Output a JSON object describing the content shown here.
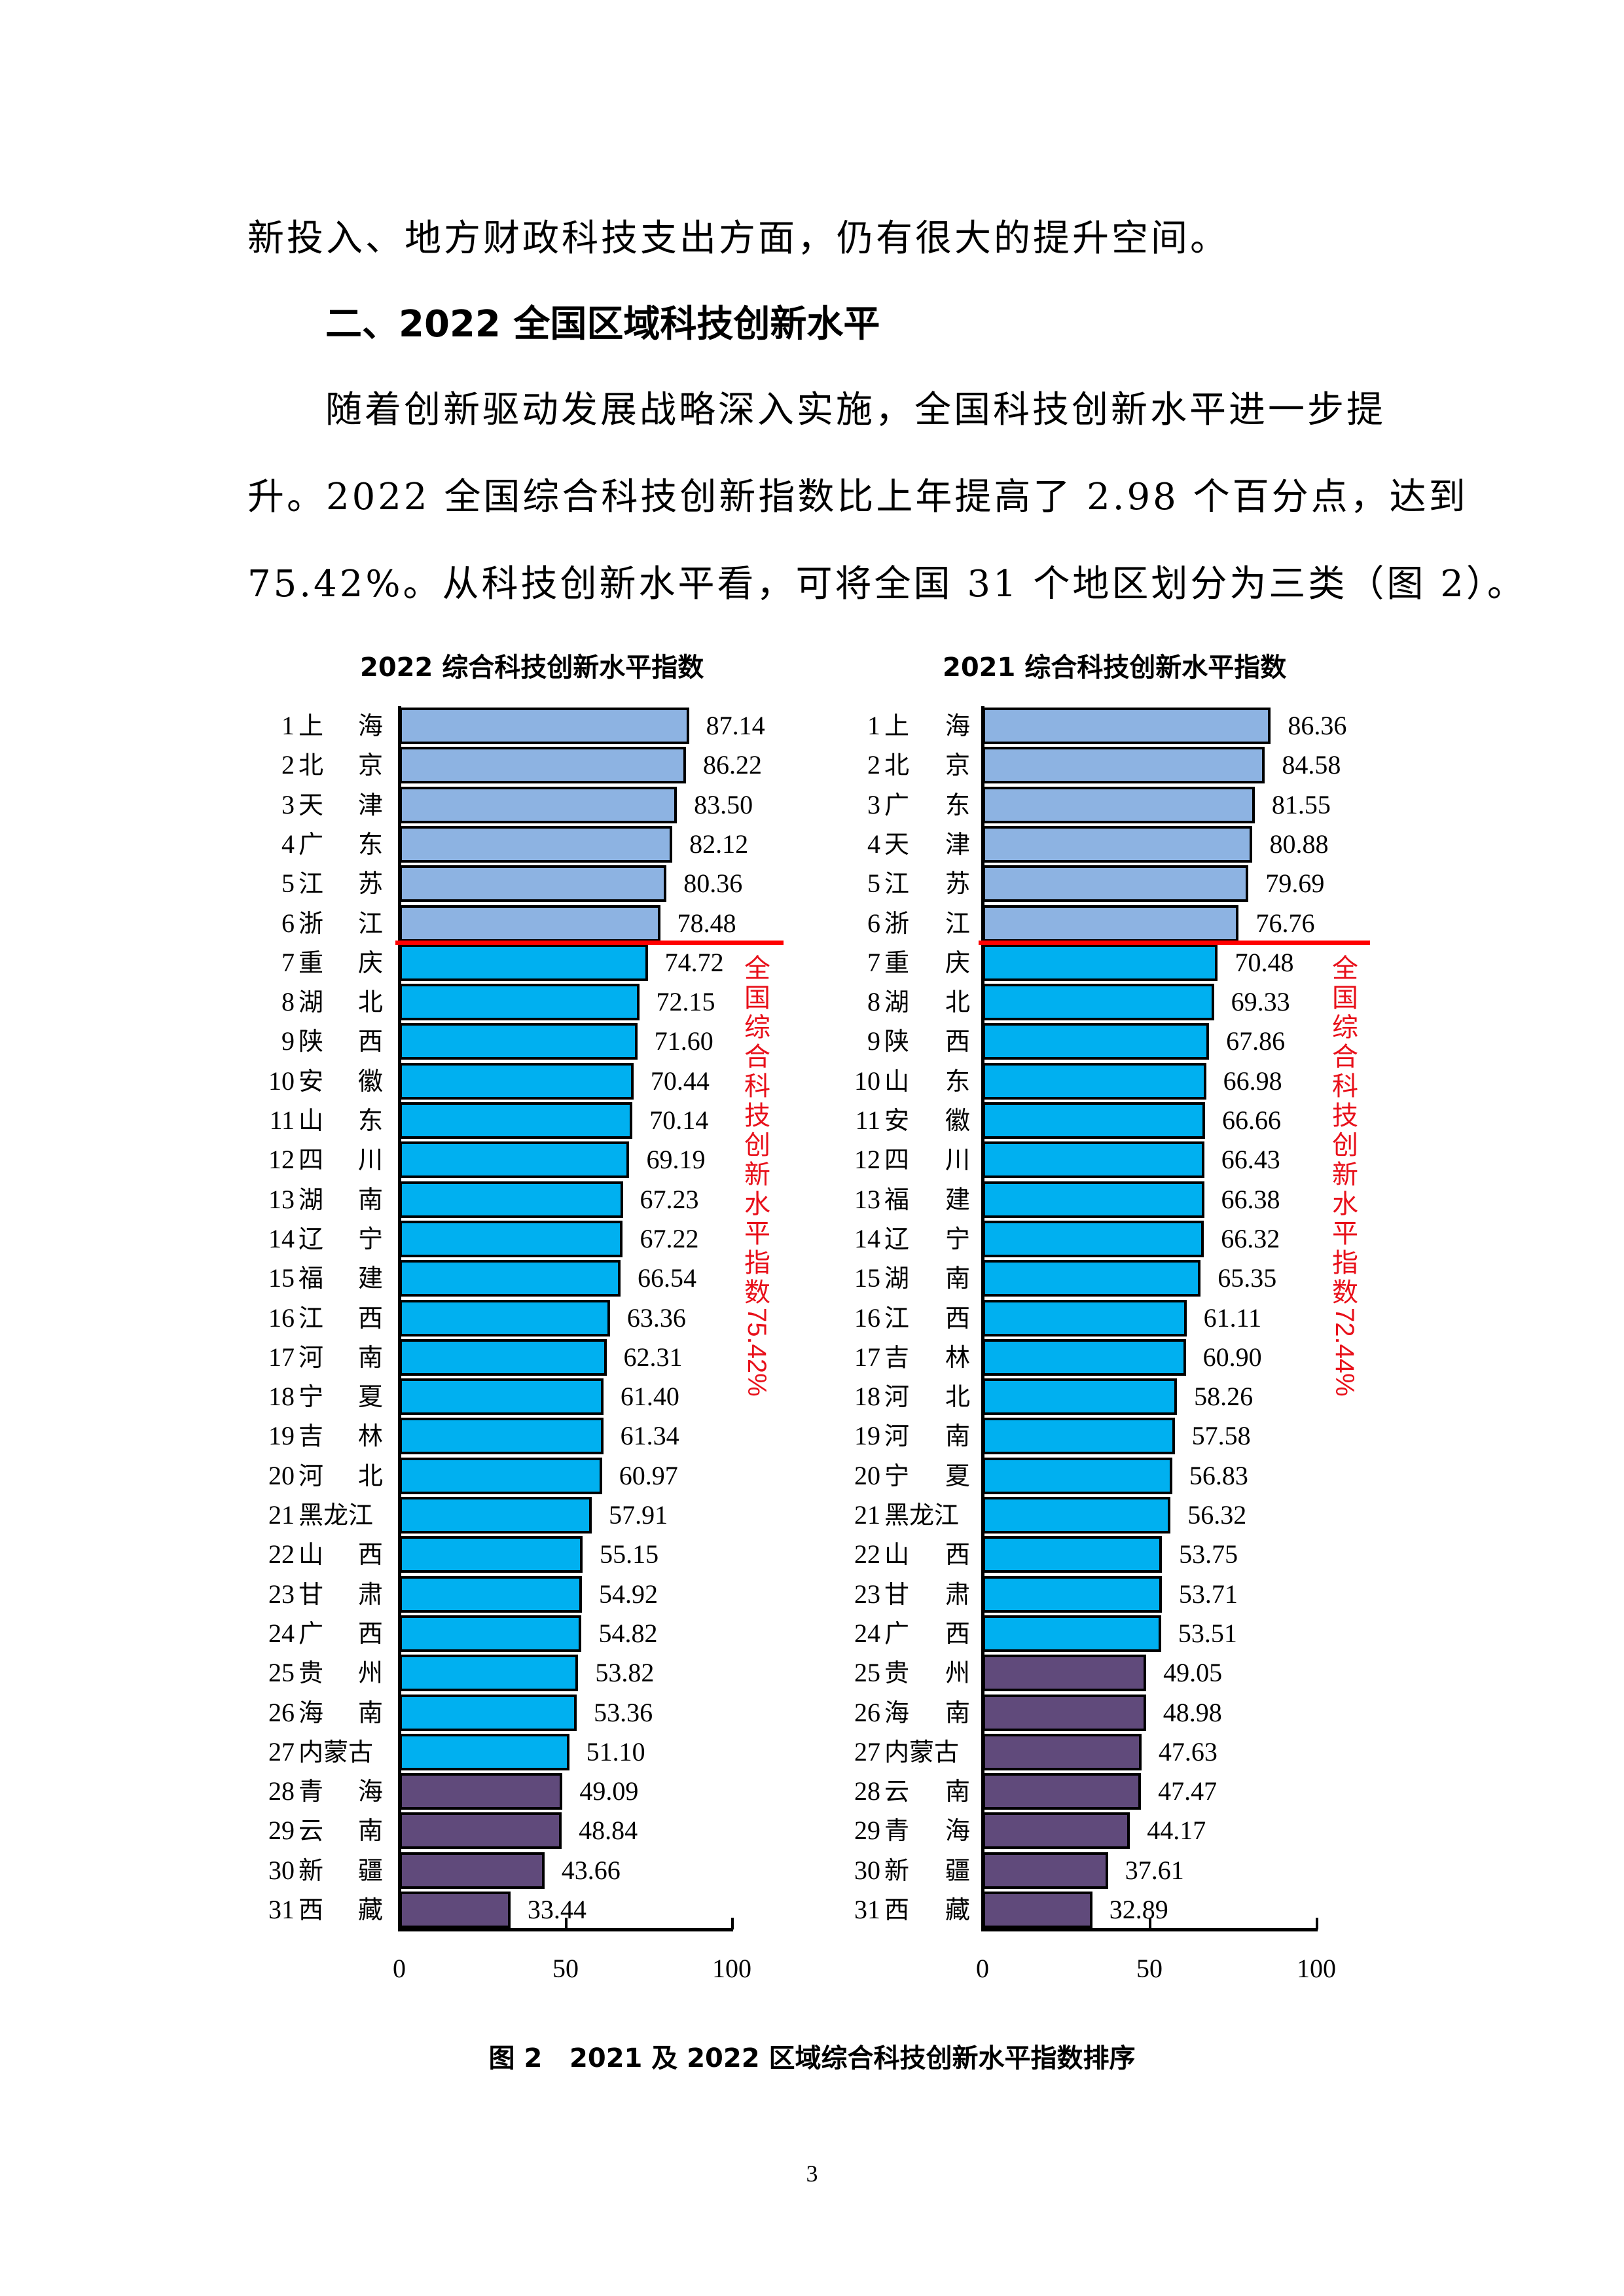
{
  "body": {
    "line1": "新投入、地方财政科技支出方面，仍有很大的提升空间。",
    "heading": "二、2022 全国区域科技创新水平",
    "para_line1": "随着创新驱动发展战略深入实施，全国科技创新水平进一步提",
    "para_line2": "升。2022 全国综合科技创新指数比上年提高了 2.98 个百分点，达到",
    "para_line3": "75.42%。从科技创新水平看，可将全国 31 个地区划分为三类（图 2）。"
  },
  "figure": {
    "caption": "图 2   2021 及 2022 区域综合科技创新水平指数排序",
    "page_number": "3"
  },
  "colors": {
    "tier1": "#8db3e2",
    "tier2": "#00b0f0",
    "tier3": "#604a7b",
    "threshold_line": "#ff0000",
    "annotation": "#e8101a"
  },
  "chart_data": [
    {
      "type": "bar",
      "orientation": "horizontal",
      "title": "2022 综合科技创新水平指数",
      "xlabel": "",
      "ylabel": "",
      "xlim": [
        0,
        100
      ],
      "xticks": [
        "0",
        "50",
        "100"
      ],
      "grid": false,
      "legend": null,
      "annotation": {
        "text": "全国综合科技创新水平指数",
        "value": "75.42%",
        "threshold_after_rank": 6
      },
      "categories": [
        {
          "rank": "1",
          "name": "上海"
        },
        {
          "rank": "2",
          "name": "北京"
        },
        {
          "rank": "3",
          "name": "天津"
        },
        {
          "rank": "4",
          "name": "广东"
        },
        {
          "rank": "5",
          "name": "江苏"
        },
        {
          "rank": "6",
          "name": "浙江"
        },
        {
          "rank": "7",
          "name": "重庆"
        },
        {
          "rank": "8",
          "name": "湖北"
        },
        {
          "rank": "9",
          "name": "陕西"
        },
        {
          "rank": "10",
          "name": "安徽"
        },
        {
          "rank": "11",
          "name": "山东"
        },
        {
          "rank": "12",
          "name": "四川"
        },
        {
          "rank": "13",
          "name": "湖南"
        },
        {
          "rank": "14",
          "name": "辽宁"
        },
        {
          "rank": "15",
          "name": "福建"
        },
        {
          "rank": "16",
          "name": "江西"
        },
        {
          "rank": "17",
          "name": "河南"
        },
        {
          "rank": "18",
          "name": "宁夏"
        },
        {
          "rank": "19",
          "name": "吉林"
        },
        {
          "rank": "20",
          "name": "河北"
        },
        {
          "rank": "21",
          "name": "黑龙江"
        },
        {
          "rank": "22",
          "name": "山西"
        },
        {
          "rank": "23",
          "name": "甘肃"
        },
        {
          "rank": "24",
          "name": "广西"
        },
        {
          "rank": "25",
          "name": "贵州"
        },
        {
          "rank": "26",
          "name": "海南"
        },
        {
          "rank": "27",
          "name": "内蒙古"
        },
        {
          "rank": "28",
          "name": "青海"
        },
        {
          "rank": "29",
          "name": "云南"
        },
        {
          "rank": "30",
          "name": "新疆"
        },
        {
          "rank": "31",
          "name": "西藏"
        }
      ],
      "values": [
        87.14,
        86.22,
        83.5,
        82.12,
        80.36,
        78.48,
        74.72,
        72.15,
        71.6,
        70.44,
        70.14,
        69.19,
        67.23,
        67.22,
        66.54,
        63.36,
        62.31,
        61.4,
        61.34,
        60.97,
        57.91,
        55.15,
        54.92,
        54.82,
        53.82,
        53.36,
        51.1,
        49.09,
        48.84,
        43.66,
        33.44
      ],
      "value_labels": [
        "87.14",
        "86.22",
        "83.50",
        "82.12",
        "80.36",
        "78.48",
        "74.72",
        "72.15",
        "71.60",
        "70.44",
        "70.14",
        "69.19",
        "67.23",
        "67.22",
        "66.54",
        "63.36",
        "62.31",
        "61.40",
        "61.34",
        "60.97",
        "57.91",
        "55.15",
        "54.92",
        "54.82",
        "53.82",
        "53.36",
        "51.10",
        "49.09",
        "48.84",
        "43.66",
        "33.44"
      ],
      "tiers": [
        1,
        1,
        1,
        1,
        1,
        1,
        2,
        2,
        2,
        2,
        2,
        2,
        2,
        2,
        2,
        2,
        2,
        2,
        2,
        2,
        2,
        2,
        2,
        2,
        2,
        2,
        2,
        3,
        3,
        3,
        3
      ]
    },
    {
      "type": "bar",
      "orientation": "horizontal",
      "title": "2021 综合科技创新水平指数",
      "xlabel": "",
      "ylabel": "",
      "xlim": [
        0,
        100
      ],
      "xticks": [
        "0",
        "50",
        "100"
      ],
      "grid": false,
      "legend": null,
      "annotation": {
        "text": "全国综合科技创新水平指数",
        "value": "72.44%",
        "threshold_after_rank": 6
      },
      "categories": [
        {
          "rank": "1",
          "name": "上海"
        },
        {
          "rank": "2",
          "name": "北京"
        },
        {
          "rank": "3",
          "name": "广东"
        },
        {
          "rank": "4",
          "name": "天津"
        },
        {
          "rank": "5",
          "name": "江苏"
        },
        {
          "rank": "6",
          "name": "浙江"
        },
        {
          "rank": "7",
          "name": "重庆"
        },
        {
          "rank": "8",
          "name": "湖北"
        },
        {
          "rank": "9",
          "name": "陕西"
        },
        {
          "rank": "10",
          "name": "山东"
        },
        {
          "rank": "11",
          "name": "安徽"
        },
        {
          "rank": "12",
          "name": "四川"
        },
        {
          "rank": "13",
          "name": "福建"
        },
        {
          "rank": "14",
          "name": "辽宁"
        },
        {
          "rank": "15",
          "name": "湖南"
        },
        {
          "rank": "16",
          "name": "江西"
        },
        {
          "rank": "17",
          "name": "吉林"
        },
        {
          "rank": "18",
          "name": "河北"
        },
        {
          "rank": "19",
          "name": "河南"
        },
        {
          "rank": "20",
          "name": "宁夏"
        },
        {
          "rank": "21",
          "name": "黑龙江"
        },
        {
          "rank": "22",
          "name": "山西"
        },
        {
          "rank": "23",
          "name": "甘肃"
        },
        {
          "rank": "24",
          "name": "广西"
        },
        {
          "rank": "25",
          "name": "贵州"
        },
        {
          "rank": "26",
          "name": "海南"
        },
        {
          "rank": "27",
          "name": "内蒙古"
        },
        {
          "rank": "28",
          "name": "云南"
        },
        {
          "rank": "29",
          "name": "青海"
        },
        {
          "rank": "30",
          "name": "新疆"
        },
        {
          "rank": "31",
          "name": "西藏"
        }
      ],
      "values": [
        86.36,
        84.58,
        81.55,
        80.88,
        79.69,
        76.76,
        70.48,
        69.33,
        67.86,
        66.98,
        66.66,
        66.43,
        66.38,
        66.32,
        65.35,
        61.11,
        60.9,
        58.26,
        57.58,
        56.83,
        56.32,
        53.75,
        53.71,
        53.51,
        49.05,
        48.98,
        47.63,
        47.47,
        44.17,
        37.61,
        32.89
      ],
      "value_labels": [
        "86.36",
        "84.58",
        "81.55",
        "80.88",
        "79.69",
        "76.76",
        "70.48",
        "69.33",
        "67.86",
        "66.98",
        "66.66",
        "66.43",
        "66.38",
        "66.32",
        "65.35",
        "61.11",
        "60.90",
        "58.26",
        "57.58",
        "56.83",
        "56.32",
        "53.75",
        "53.71",
        "53.51",
        "49.05",
        "48.98",
        "47.63",
        "47.47",
        "44.17",
        "37.61",
        "32.89"
      ],
      "tiers": [
        1,
        1,
        1,
        1,
        1,
        1,
        2,
        2,
        2,
        2,
        2,
        2,
        2,
        2,
        2,
        2,
        2,
        2,
        2,
        2,
        2,
        2,
        2,
        2,
        3,
        3,
        3,
        3,
        3,
        3,
        3
      ]
    }
  ]
}
